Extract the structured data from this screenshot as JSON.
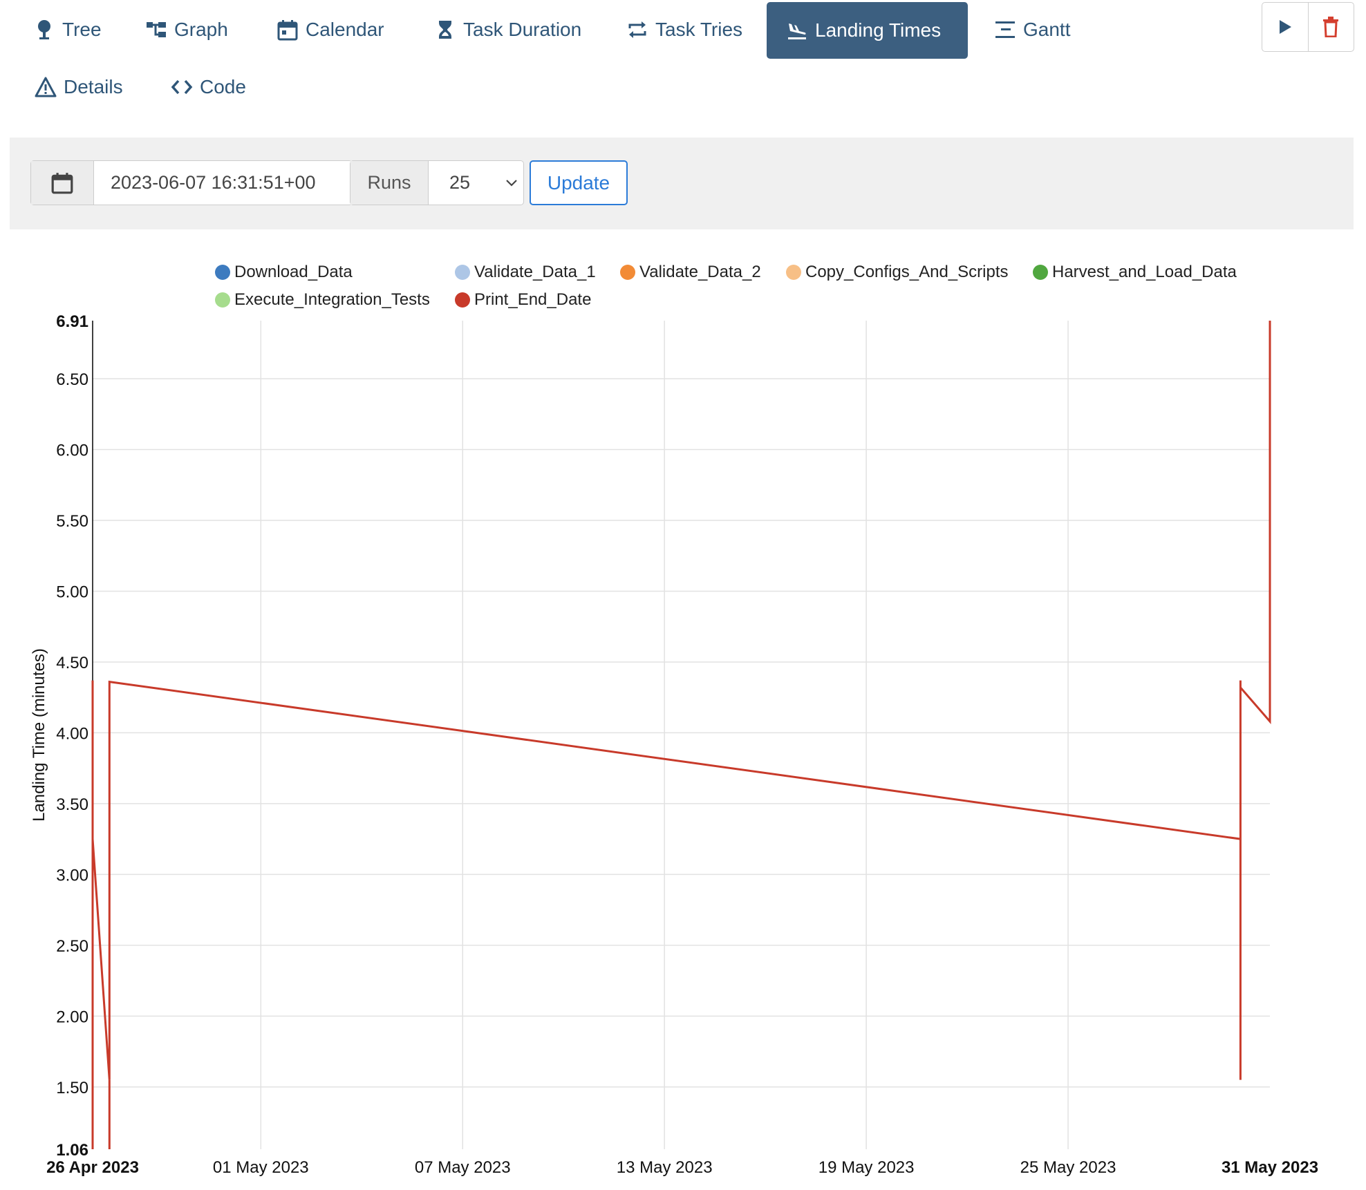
{
  "nav": {
    "tabs": [
      {
        "label": "Tree",
        "icon": "tree-icon",
        "active": false
      },
      {
        "label": "Graph",
        "icon": "graph-icon",
        "active": false
      },
      {
        "label": "Calendar",
        "icon": "calendar-icon",
        "active": false
      },
      {
        "label": "Task Duration",
        "icon": "hourglass-icon",
        "active": false
      },
      {
        "label": "Task Tries",
        "icon": "retry-icon",
        "active": false
      },
      {
        "label": "Landing Times",
        "icon": "plane-landing-icon",
        "active": true
      },
      {
        "label": "Gantt",
        "icon": "gantt-icon",
        "active": false
      },
      {
        "label": "Details",
        "icon": "warning-triangle-icon",
        "active": false
      },
      {
        "label": "Code",
        "icon": "code-icon",
        "active": false
      }
    ],
    "actions": [
      {
        "icon": "play-icon"
      },
      {
        "icon": "trash-icon"
      }
    ]
  },
  "toolbar": {
    "date_value": "2023-06-07 16:31:51+00",
    "runs_label": "Runs",
    "runs_value": "25",
    "update_label": "Update"
  },
  "colors": {
    "accent": "#3c5f80",
    "link": "#2b7bd8",
    "danger": "#d43f2f"
  },
  "chart_data": {
    "type": "line",
    "ylabel": "Landing Time (minutes)",
    "xlabel": "",
    "ylim": [
      1.06,
      6.91
    ],
    "y_ticks": [
      "1.06",
      "1.50",
      "2.00",
      "2.50",
      "3.00",
      "3.50",
      "4.00",
      "4.50",
      "5.00",
      "5.50",
      "6.00",
      "6.50",
      "6.91"
    ],
    "x_ticks": [
      "26 Apr 2023",
      "01 May 2023",
      "07 May 2023",
      "13 May 2023",
      "19 May 2023",
      "25 May 2023",
      "31 May 2023"
    ],
    "x_range": [
      "2023-04-26 00:00",
      "2023-05-31 00:00"
    ],
    "grid": true,
    "legend_position": "top",
    "series": [
      {
        "name": "Download_Data",
        "color": "#3d7bbf",
        "values": []
      },
      {
        "name": "Validate_Data_1",
        "color": "#adc6e6",
        "values": []
      },
      {
        "name": "Validate_Data_2",
        "color": "#f28b36",
        "values": []
      },
      {
        "name": "Copy_Configs_And_Scripts",
        "color": "#f7bf86",
        "values": []
      },
      {
        "name": "Harvest_and_Load_Data",
        "color": "#50a73f",
        "values": []
      },
      {
        "name": "Execute_Integration_Tests",
        "color": "#a6dc8d",
        "values": []
      },
      {
        "name": "Print_End_Date",
        "color": "#c83a2a",
        "points": [
          {
            "x": "2023-04-26 00:00",
            "y": 1.06
          },
          {
            "x": "2023-04-26 00:00",
            "y": 4.37
          },
          {
            "x": "2023-04-26 00:00",
            "y": 3.25
          },
          {
            "x": "2023-04-26 12:00",
            "y": 1.55
          },
          {
            "x": "2023-04-26 12:00",
            "y": 4.36
          },
          {
            "x": "2023-04-26 12:00",
            "y": 1.06
          },
          {
            "x": "2023-04-26 12:00",
            "y": 4.36
          },
          {
            "x": "2023-05-30 03:00",
            "y": 3.25
          },
          {
            "x": "2023-05-30 03:00",
            "y": 1.55
          },
          {
            "x": "2023-05-30 03:00",
            "y": 4.37
          },
          {
            "x": "2023-05-30 03:00",
            "y": 4.32
          },
          {
            "x": "2023-05-31 00:00",
            "y": 4.08
          },
          {
            "x": "2023-05-31 00:00",
            "y": 6.91
          }
        ]
      }
    ]
  }
}
